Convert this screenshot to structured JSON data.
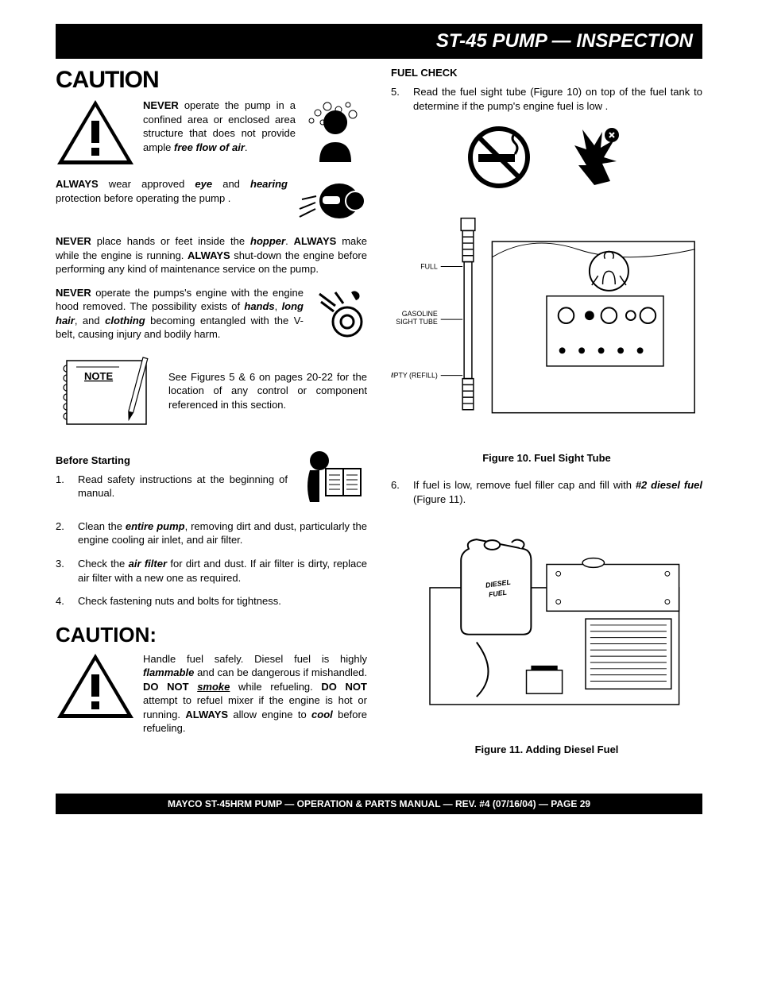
{
  "header": {
    "title": "ST-45 PUMP —  INSPECTION"
  },
  "left": {
    "caution1": "CAUTION",
    "p1_prefix": "NEVER",
    "p1_body": " operate the pump in a confined area or enclosed area structure that does not provide ample ",
    "p1_em": "free flow of air",
    "p1_end": ".",
    "p2_prefix": "ALWAYS",
    "p2_a": " wear approved ",
    "p2_eye": "eye",
    "p2_and": " and ",
    "p2_hear": "hearing",
    "p2_rest": " protection before operating the pump .",
    "p3_a": "NEVER",
    "p3_b": " place hands or feet inside the ",
    "p3_c": "hopper",
    "p3_d": ". ",
    "p3_e": "ALWAYS",
    "p3_f": " make while the engine is running. ",
    "p3_g": "ALWAYS",
    "p3_h": " shut-down the engine before performing any kind of maintenance service on the pump.",
    "p4_a": "NEVER",
    "p4_b": " operate the pumps's engine with the engine hood removed. The possibility exists of ",
    "p4_c": "hands",
    "p4_d": ", ",
    "p4_e": "long hair",
    "p4_f": ", and ",
    "p4_g": "clothing",
    "p4_h": " becoming entangled with the V-belt, causing injury and bodily harm.",
    "note_label": "NOTE",
    "note_text": "See Figures 5 & 6 on pages 20-22 for the location of any control or component referenced in this section.",
    "before_starting": "Before Starting",
    "steps": [
      "Read safety instructions at the beginning of manual.",
      "Clean the <b><i>entire pump</i></b>, removing dirt and dust, particularly the  engine cooling air inlet, and air filter.",
      "Check the <b><i>air filter</i></b> for dirt and dust.  If air filter is dirty, replace air filter with a new one as required.",
      "Check fastening nuts and bolts for tightness."
    ],
    "caution2": "CAUTION:",
    "fuel_para_a": "Handle fuel safely. Diesel fuel is highly ",
    "fuel_para_b": "flammable",
    "fuel_para_c": " and can be dangerous if mishandled. ",
    "fuel_para_d": "DO NOT ",
    "fuel_para_e": "smoke",
    "fuel_para_f": " while refueling. ",
    "fuel_para_g": "DO NOT",
    "fuel_para_h": " attempt to refuel mixer if the engine is hot or running. ",
    "fuel_para_i": "ALWAYS",
    "fuel_para_j": " allow engine to ",
    "fuel_para_k": "cool",
    "fuel_para_l": " before refueling."
  },
  "right": {
    "fuel_check": "FUEL CHECK",
    "step5": "Read the fuel sight tube  (Figure 10) on top of the fuel tank to  determine if the pump's engine fuel is low .",
    "fig10_labels": {
      "full": "FULL",
      "tube": "GASOLINE SIGHT TUBE",
      "empty": "EMPTY (REFILL)"
    },
    "fig10_caption": "Figure 10. Fuel Sight Tube",
    "step6_a": "If fuel is low,  remove fuel filler cap and fill with ",
    "step6_b": "#2 diesel fuel",
    "step6_c": "  (Figure 11).",
    "fig11_caption": "Figure 11. Adding Diesel Fuel"
  },
  "footer": "MAYCO ST-45HRM PUMP — OPERATION & PARTS MANUAL — REV. #4 (07/16/04) — PAGE 29"
}
